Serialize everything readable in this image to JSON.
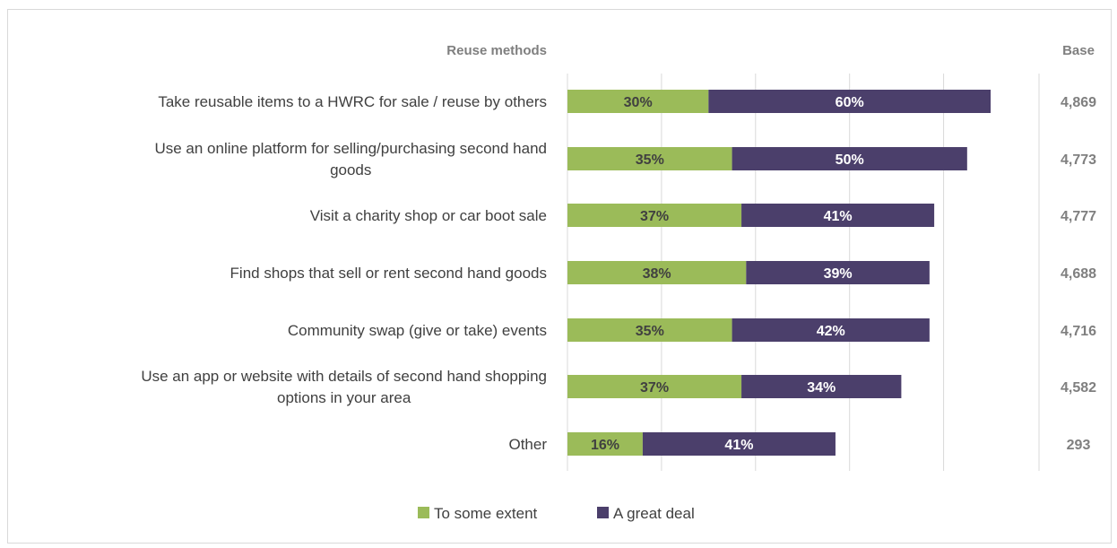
{
  "chart_data": {
    "type": "bar",
    "orientation": "horizontal",
    "stacked": true,
    "header_categories": "Reuse methods",
    "header_base": "Base",
    "categories": [
      [
        "Take reusable items to a HWRC for sale / reuse by others"
      ],
      [
        "Use an online platform for selling/purchasing second hand",
        "goods"
      ],
      [
        "Visit a charity shop or car boot sale"
      ],
      [
        "Find shops that sell or rent second hand goods"
      ],
      [
        "Community swap (give or take) events"
      ],
      [
        "Use an app or website with details of second hand shopping",
        "options in your area"
      ],
      [
        "Other"
      ]
    ],
    "series": [
      {
        "name": "To some extent",
        "color": "#9bbb59",
        "label_color": "#404040",
        "values": [
          30,
          35,
          37,
          38,
          35,
          37,
          16
        ]
      },
      {
        "name": "A great deal",
        "color": "#4b3f6b",
        "label_color": "#ffffff",
        "values": [
          60,
          50,
          41,
          39,
          42,
          34,
          41
        ]
      }
    ],
    "data_labels": [
      [
        "30%",
        "35%",
        "37%",
        "38%",
        "35%",
        "37%",
        "16%"
      ],
      [
        "60%",
        "50%",
        "41%",
        "39%",
        "42%",
        "34%",
        "41%"
      ]
    ],
    "base": [
      "4,869",
      "4,773",
      "4,777",
      "4,688",
      "4,716",
      "4,582",
      "293"
    ],
    "xlim": [
      0,
      100
    ],
    "grid": true,
    "legend_position": "bottom"
  }
}
